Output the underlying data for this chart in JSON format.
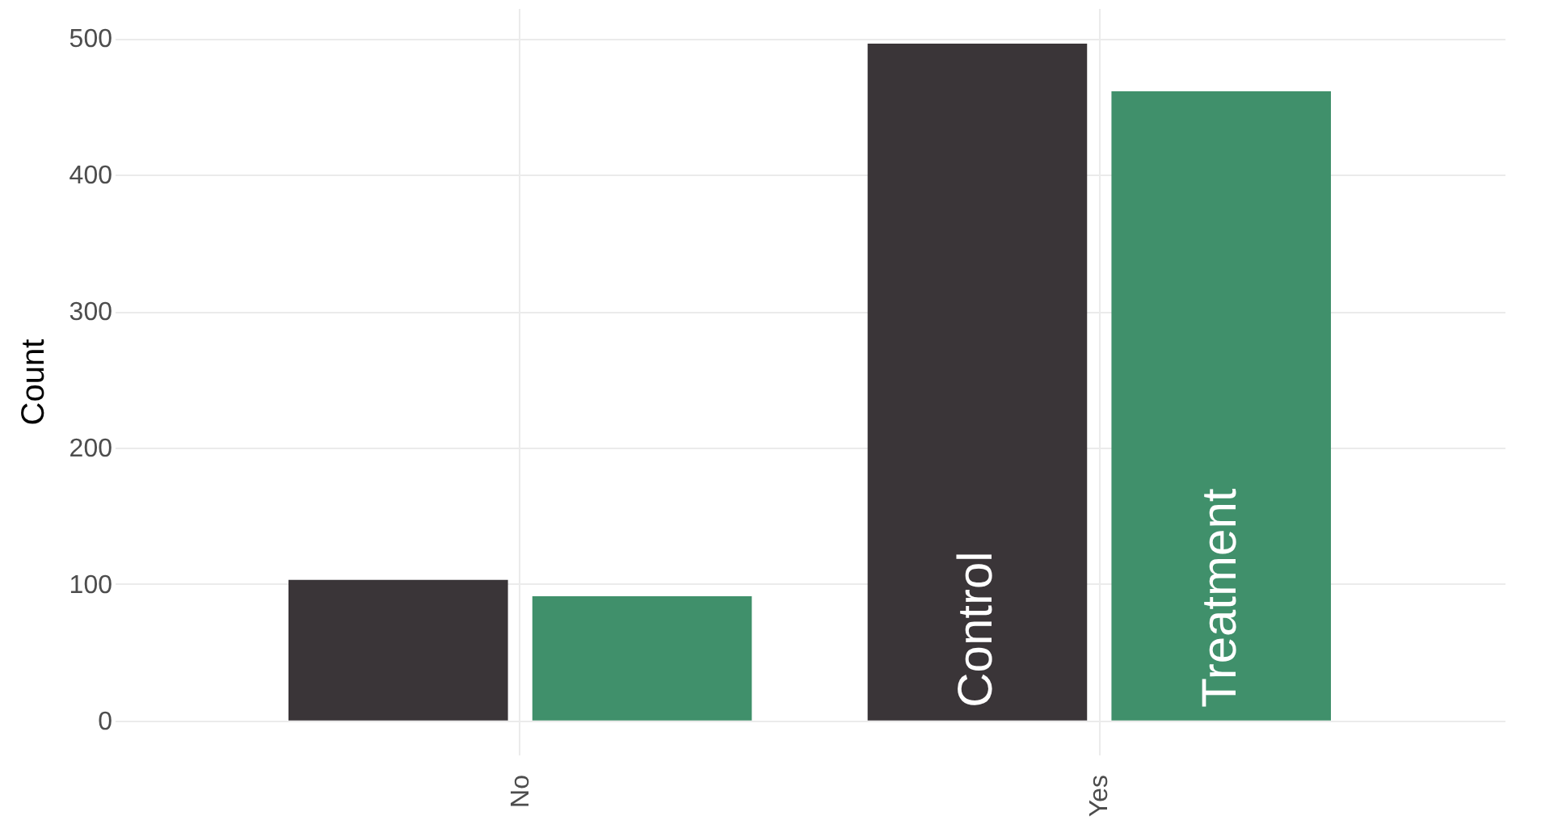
{
  "chart_data": {
    "type": "bar",
    "ylabel": "Count",
    "categories": [
      "No",
      "Yes"
    ],
    "series": [
      {
        "name": "Control",
        "color": "#3a3538",
        "values": [
          103,
          496
        ]
      },
      {
        "name": "Treatment",
        "color": "#40906b",
        "values": [
          91,
          461
        ]
      }
    ],
    "ylim": [
      -25,
      522
    ],
    "yticks": [
      0,
      100,
      200,
      300,
      400,
      500
    ],
    "grid": true,
    "legend": false
  }
}
